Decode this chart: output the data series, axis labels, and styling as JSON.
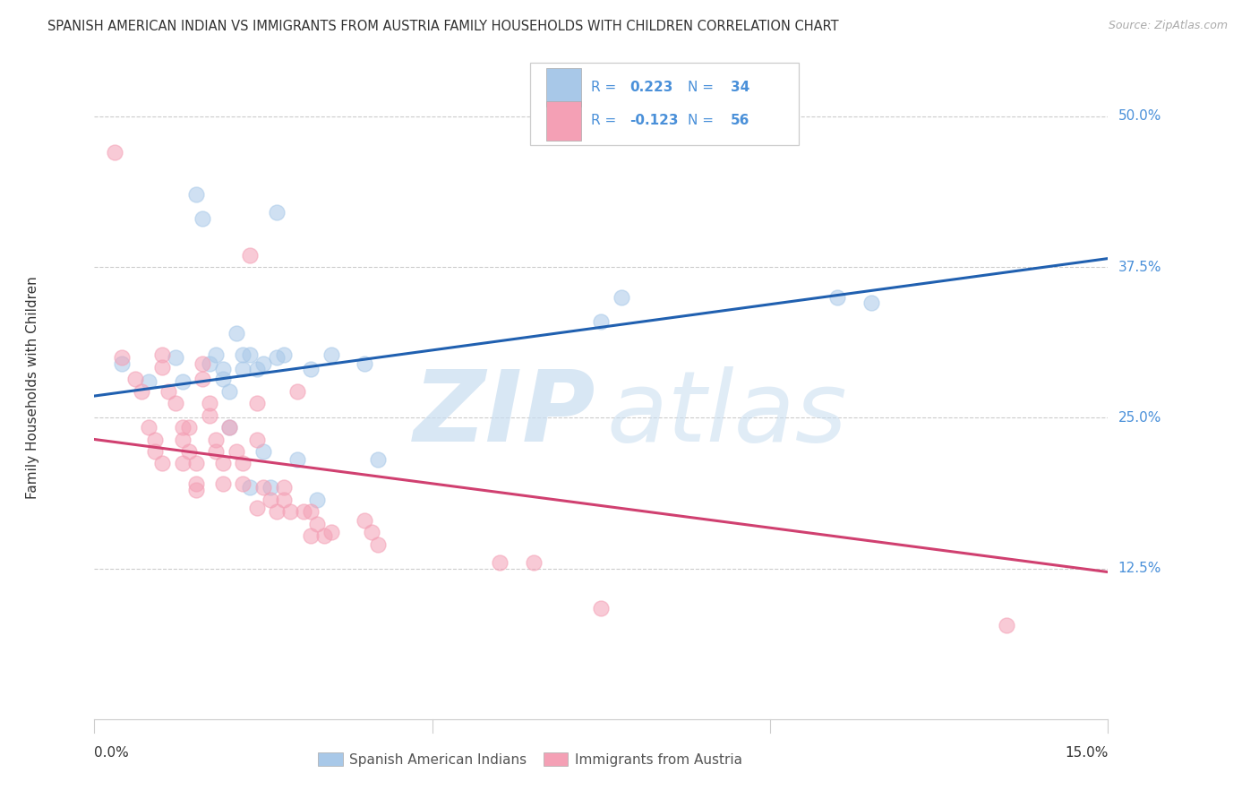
{
  "title": "SPANISH AMERICAN INDIAN VS IMMIGRANTS FROM AUSTRIA FAMILY HOUSEHOLDS WITH CHILDREN CORRELATION CHART",
  "source": "Source: ZipAtlas.com",
  "ylabel": "Family Households with Children",
  "ytick_labels": [
    "50.0%",
    "37.5%",
    "25.0%",
    "12.5%"
  ],
  "ytick_values": [
    0.5,
    0.375,
    0.25,
    0.125
  ],
  "xlim": [
    0.0,
    0.15
  ],
  "ylim": [
    0.0,
    0.55
  ],
  "legend1_r_label": "R = ",
  "legend1_r_val": " 0.223",
  "legend1_n_label": "  N = ",
  "legend1_n_val": "34",
  "legend2_r_label": "R = ",
  "legend2_r_val": "-0.123",
  "legend2_n_label": "  N = ",
  "legend2_n_val": "56",
  "color_blue": "#a8c8e8",
  "color_pink": "#f4a0b5",
  "line_color_blue": "#2060b0",
  "line_color_pink": "#d04070",
  "text_color_blue": "#4a90d9",
  "text_color_dark": "#333333",
  "text_color_source": "#aaaaaa",
  "blue_scatter_x": [
    0.004,
    0.008,
    0.012,
    0.013,
    0.015,
    0.016,
    0.017,
    0.018,
    0.019,
    0.019,
    0.02,
    0.02,
    0.021,
    0.022,
    0.022,
    0.023,
    0.023,
    0.024,
    0.025,
    0.025,
    0.026,
    0.027,
    0.027,
    0.028,
    0.03,
    0.032,
    0.033,
    0.035,
    0.04,
    0.042,
    0.075,
    0.078,
    0.11,
    0.115
  ],
  "blue_scatter_y": [
    0.295,
    0.28,
    0.3,
    0.28,
    0.435,
    0.415,
    0.295,
    0.302,
    0.29,
    0.282,
    0.272,
    0.242,
    0.32,
    0.302,
    0.29,
    0.192,
    0.302,
    0.29,
    0.295,
    0.222,
    0.192,
    0.42,
    0.3,
    0.302,
    0.215,
    0.29,
    0.182,
    0.302,
    0.295,
    0.215,
    0.33,
    0.35,
    0.35,
    0.345
  ],
  "pink_scatter_x": [
    0.003,
    0.004,
    0.006,
    0.007,
    0.008,
    0.009,
    0.009,
    0.01,
    0.01,
    0.01,
    0.011,
    0.012,
    0.013,
    0.013,
    0.013,
    0.014,
    0.014,
    0.015,
    0.015,
    0.015,
    0.016,
    0.016,
    0.017,
    0.017,
    0.018,
    0.018,
    0.019,
    0.019,
    0.02,
    0.021,
    0.022,
    0.022,
    0.023,
    0.024,
    0.024,
    0.024,
    0.025,
    0.026,
    0.027,
    0.028,
    0.028,
    0.029,
    0.03,
    0.031,
    0.032,
    0.032,
    0.033,
    0.034,
    0.035,
    0.04,
    0.041,
    0.042,
    0.06,
    0.065,
    0.075,
    0.135
  ],
  "pink_scatter_y": [
    0.47,
    0.3,
    0.282,
    0.272,
    0.242,
    0.232,
    0.222,
    0.212,
    0.302,
    0.292,
    0.272,
    0.262,
    0.242,
    0.232,
    0.212,
    0.242,
    0.222,
    0.212,
    0.195,
    0.19,
    0.295,
    0.282,
    0.262,
    0.252,
    0.232,
    0.222,
    0.212,
    0.195,
    0.242,
    0.222,
    0.212,
    0.195,
    0.385,
    0.262,
    0.232,
    0.175,
    0.192,
    0.182,
    0.172,
    0.192,
    0.182,
    0.172,
    0.272,
    0.172,
    0.152,
    0.172,
    0.162,
    0.152,
    0.155,
    0.165,
    0.155,
    0.145,
    0.13,
    0.13,
    0.092,
    0.078
  ],
  "blue_line_x": [
    0.0,
    0.15
  ],
  "blue_line_y": [
    0.268,
    0.382
  ],
  "pink_line_x": [
    0.0,
    0.15
  ],
  "pink_line_y": [
    0.232,
    0.122
  ]
}
